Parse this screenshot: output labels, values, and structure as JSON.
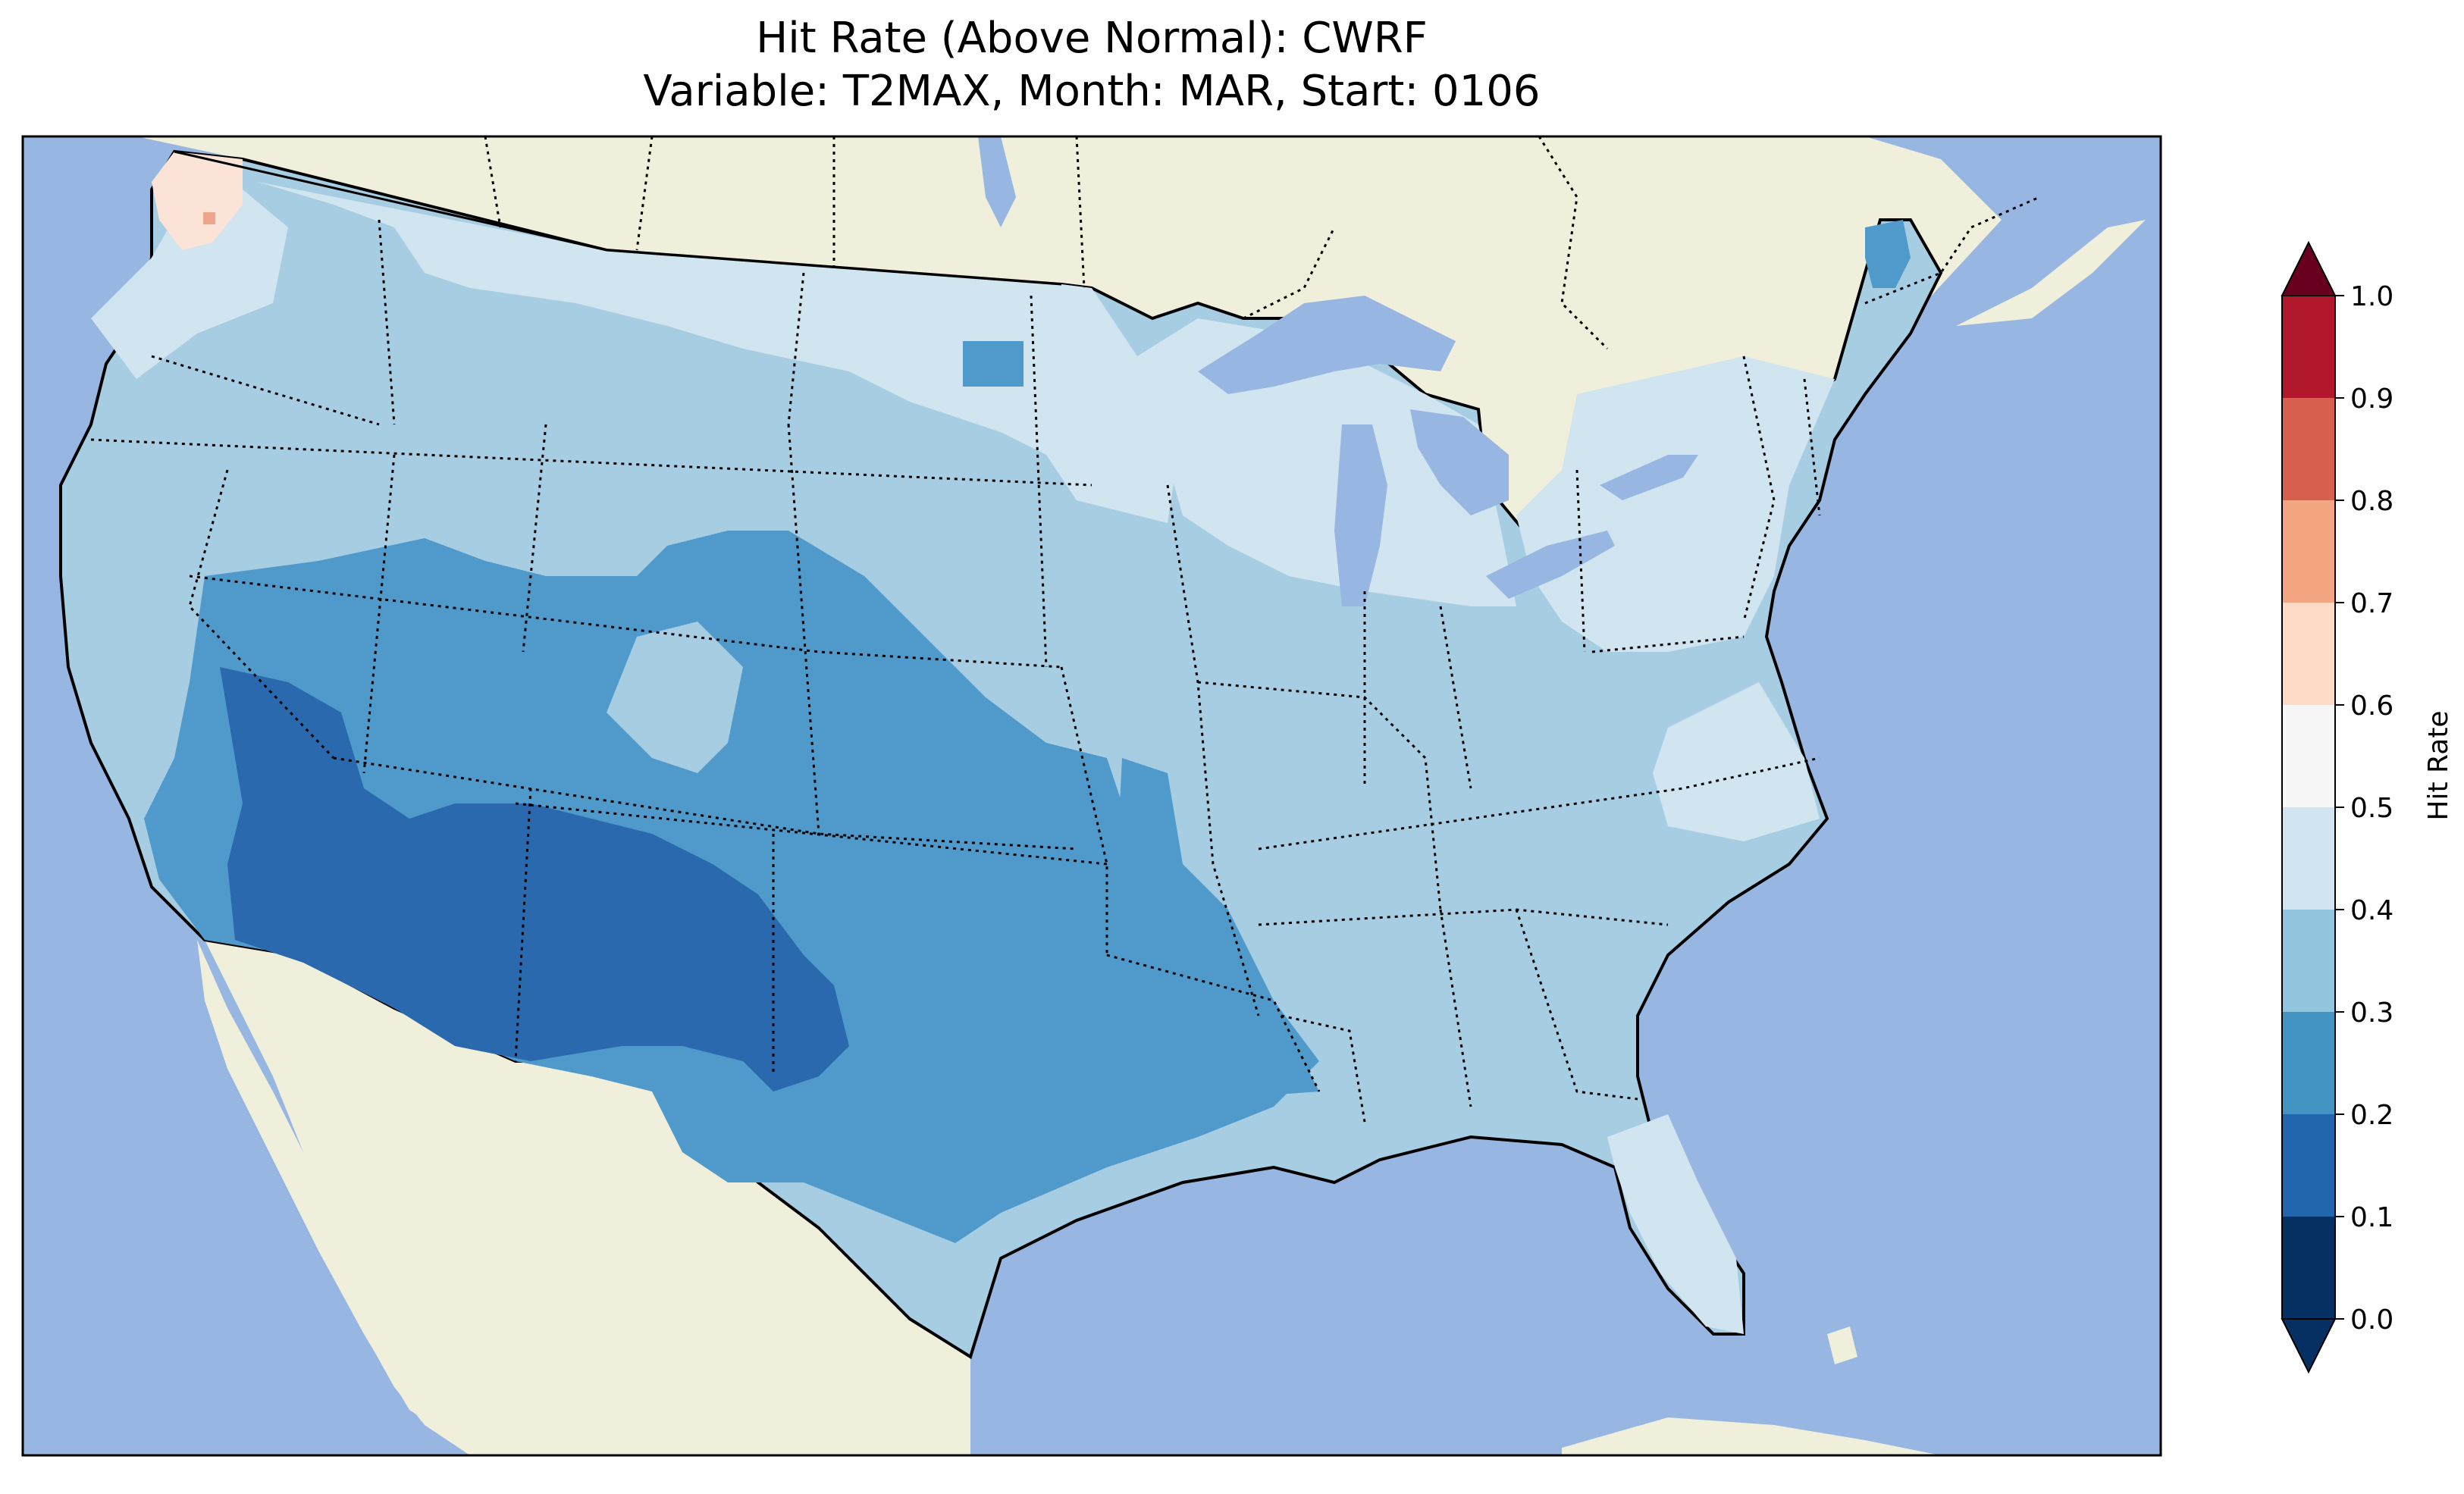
{
  "title_line1": "Hit Rate (Above Normal): CWRF",
  "title_line2": "Variable: T2MAX, Month: MAR, Start: 0106",
  "colorbar": {
    "label": "Hit Rate",
    "ticks": [
      "0.0",
      "0.1",
      "0.2",
      "0.3",
      "0.4",
      "0.5",
      "0.6",
      "0.7",
      "0.8",
      "0.9",
      "1.0"
    ],
    "bins": [
      "#053061",
      "#2166ac",
      "#4393c3",
      "#92c5de",
      "#d1e5f0",
      "#f7f7f7",
      "#fddbc7",
      "#f4a582",
      "#d6604d",
      "#b2182b"
    ],
    "under_color": "#053061",
    "over_color": "#67001f"
  },
  "colors": {
    "ocean": "#97b6e1",
    "land": "#efefdc",
    "lakes": "#97b6e1"
  },
  "chart_data": {
    "type": "heatmap",
    "title": "Hit Rate (Above Normal): CWRF\nVariable: T2MAX, Month: MAR, Start: 0106",
    "colorbar_label": "Hit Rate",
    "value_range": [
      0.0,
      1.0
    ],
    "levels": [
      0.0,
      0.1,
      0.2,
      0.3,
      0.4,
      0.5,
      0.6,
      0.7,
      0.8,
      0.9,
      1.0
    ],
    "regions": [
      {
        "region": "Pacific Northwest coast (WA)",
        "value_bin": [
          0.5,
          0.6
        ]
      },
      {
        "region": "Northern tier (MT, ND, MN, WI, MI)",
        "value_bin": [
          0.4,
          0.5
        ]
      },
      {
        "region": "Northeast (NY, PA, New England)",
        "value_bin": [
          0.4,
          0.5
        ]
      },
      {
        "region": "Maine",
        "value_bin": [
          0.2,
          0.3
        ]
      },
      {
        "region": "Florida / Carolinas coast",
        "value_bin": [
          0.4,
          0.5
        ]
      },
      {
        "region": "Central Plains / Midwest / Southeast",
        "value_bin": [
          0.3,
          0.4
        ]
      },
      {
        "region": "Great Basin / Colorado / Kansas / Texas / Arkansas",
        "value_bin": [
          0.2,
          0.3
        ]
      },
      {
        "region": "Desert Southwest (AZ, NM, S. NV, SE CA)",
        "value_bin": [
          0.1,
          0.2
        ]
      }
    ]
  }
}
